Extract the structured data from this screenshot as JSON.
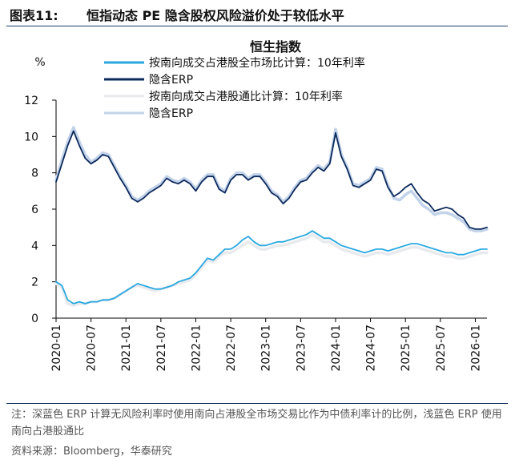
{
  "figure": {
    "number": "图表11:",
    "title": "恒指动态 PE 隐含股权风险溢价处于较低水平"
  },
  "footer": {
    "note": "注：深蓝色 ERP 计算无风险利率时使用南向占港股全市场交易比作为中债利率计的比例，浅蓝色 ERP 使用南向占港股通比",
    "source": "资料来源：Bloomberg，华泰研究"
  },
  "chart_data": {
    "type": "line",
    "title": "恒生指数",
    "ylabel": "%",
    "ylim": [
      0,
      12
    ],
    "yticks": [
      "0",
      "2",
      "4",
      "6",
      "8",
      "10",
      "12"
    ],
    "x_ticks": [
      "2020-01",
      "2020-07",
      "2021-01",
      "2021-07",
      "2022-01",
      "2022-07",
      "2023-01",
      "2023-07",
      "2024-01",
      "2024-07",
      "2025-01",
      "2025-07",
      "2026-01"
    ],
    "x_range": [
      "2020-01",
      "2026-03"
    ],
    "series": [
      {
        "name": "按南向成交占港股全市场比计算：10年利率",
        "color": "#29a8e0",
        "x": [
          "2020-01",
          "2020-02",
          "2020-03",
          "2020-04",
          "2020-05",
          "2020-06",
          "2020-07",
          "2020-08",
          "2020-09",
          "2020-10",
          "2020-11",
          "2020-12",
          "2021-01",
          "2021-02",
          "2021-03",
          "2021-04",
          "2021-05",
          "2021-06",
          "2021-07",
          "2021-08",
          "2021-09",
          "2021-10",
          "2021-11",
          "2021-12",
          "2022-01",
          "2022-02",
          "2022-03",
          "2022-04",
          "2022-05",
          "2022-06",
          "2022-07",
          "2022-08",
          "2022-09",
          "2022-10",
          "2022-11",
          "2022-12",
          "2023-01",
          "2023-02",
          "2023-03",
          "2023-04",
          "2023-05",
          "2023-06",
          "2023-07",
          "2023-08",
          "2023-09",
          "2023-10",
          "2023-11",
          "2023-12",
          "2024-01",
          "2024-02",
          "2024-03",
          "2024-04",
          "2024-05",
          "2024-06",
          "2024-07",
          "2024-08",
          "2024-09",
          "2024-10",
          "2024-11",
          "2024-12",
          "2025-01",
          "2025-02",
          "2025-03",
          "2025-04",
          "2025-05",
          "2025-06",
          "2025-07",
          "2025-08",
          "2025-09",
          "2025-10",
          "2025-11",
          "2025-12",
          "2026-01",
          "2026-02",
          "2026-03"
        ],
        "values": [
          2.0,
          1.8,
          1.0,
          0.8,
          0.9,
          0.8,
          0.9,
          0.9,
          1.0,
          1.0,
          1.1,
          1.3,
          1.5,
          1.7,
          1.9,
          1.8,
          1.7,
          1.6,
          1.6,
          1.7,
          1.8,
          2.0,
          2.1,
          2.2,
          2.5,
          2.9,
          3.3,
          3.2,
          3.5,
          3.8,
          3.8,
          4.0,
          4.3,
          4.5,
          4.2,
          4.0,
          4.0,
          4.1,
          4.2,
          4.2,
          4.3,
          4.4,
          4.5,
          4.6,
          4.8,
          4.6,
          4.4,
          4.4,
          4.2,
          4.0,
          3.9,
          3.8,
          3.7,
          3.6,
          3.7,
          3.8,
          3.8,
          3.7,
          3.8,
          3.9,
          4.0,
          4.1,
          4.1,
          4.0,
          3.9,
          3.8,
          3.7,
          3.6,
          3.6,
          3.5,
          3.5,
          3.6,
          3.7,
          3.8,
          3.8
        ]
      },
      {
        "name": "隐含ERP",
        "color": "#0d2a5c",
        "x": [
          "2020-01",
          "2020-02",
          "2020-03",
          "2020-04",
          "2020-05",
          "2020-06",
          "2020-07",
          "2020-08",
          "2020-09",
          "2020-10",
          "2020-11",
          "2020-12",
          "2021-01",
          "2021-02",
          "2021-03",
          "2021-04",
          "2021-05",
          "2021-06",
          "2021-07",
          "2021-08",
          "2021-09",
          "2021-10",
          "2021-11",
          "2021-12",
          "2022-01",
          "2022-02",
          "2022-03",
          "2022-04",
          "2022-05",
          "2022-06",
          "2022-07",
          "2022-08",
          "2022-09",
          "2022-10",
          "2022-11",
          "2022-12",
          "2023-01",
          "2023-02",
          "2023-03",
          "2023-04",
          "2023-05",
          "2023-06",
          "2023-07",
          "2023-08",
          "2023-09",
          "2023-10",
          "2023-11",
          "2023-12",
          "2024-01",
          "2024-02",
          "2024-03",
          "2024-04",
          "2024-05",
          "2024-06",
          "2024-07",
          "2024-08",
          "2024-09",
          "2024-10",
          "2024-11",
          "2024-12",
          "2025-01",
          "2025-02",
          "2025-03",
          "2025-04",
          "2025-05",
          "2025-06",
          "2025-07",
          "2025-08",
          "2025-09",
          "2025-10",
          "2025-11",
          "2025-12",
          "2026-01",
          "2026-02",
          "2026-03"
        ],
        "values": [
          7.5,
          8.5,
          9.5,
          10.3,
          9.5,
          8.8,
          8.5,
          8.7,
          9.0,
          8.9,
          8.3,
          7.7,
          7.2,
          6.6,
          6.4,
          6.6,
          6.9,
          7.1,
          7.3,
          7.7,
          7.5,
          7.4,
          7.6,
          7.4,
          7.0,
          7.5,
          7.8,
          7.8,
          7.1,
          6.9,
          7.6,
          7.9,
          7.9,
          7.6,
          7.8,
          7.8,
          7.4,
          6.9,
          6.7,
          6.3,
          6.6,
          7.1,
          7.5,
          7.6,
          8.0,
          8.3,
          8.1,
          8.5,
          10.2,
          8.9,
          8.2,
          7.3,
          7.2,
          7.4,
          7.6,
          8.2,
          8.1,
          7.2,
          6.7,
          6.9,
          7.2,
          7.4,
          6.9,
          6.5,
          6.3,
          5.9,
          6.0,
          6.1,
          6.0,
          5.7,
          5.5,
          5.0,
          4.9,
          4.9,
          5.0
        ]
      },
      {
        "name": "按南向成交占港股通比计算：10年利率",
        "color": "#e8eaee",
        "x": [
          "2020-01",
          "2020-02",
          "2020-03",
          "2020-04",
          "2020-05",
          "2020-06",
          "2020-07",
          "2020-08",
          "2020-09",
          "2020-10",
          "2020-11",
          "2020-12",
          "2021-01",
          "2021-02",
          "2021-03",
          "2021-04",
          "2021-05",
          "2021-06",
          "2021-07",
          "2021-08",
          "2021-09",
          "2021-10",
          "2021-11",
          "2021-12",
          "2022-01",
          "2022-02",
          "2022-03",
          "2022-04",
          "2022-05",
          "2022-06",
          "2022-07",
          "2022-08",
          "2022-09",
          "2022-10",
          "2022-11",
          "2022-12",
          "2023-01",
          "2023-02",
          "2023-03",
          "2023-04",
          "2023-05",
          "2023-06",
          "2023-07",
          "2023-08",
          "2023-09",
          "2023-10",
          "2023-11",
          "2023-12",
          "2024-01",
          "2024-02",
          "2024-03",
          "2024-04",
          "2024-05",
          "2024-06",
          "2024-07",
          "2024-08",
          "2024-09",
          "2024-10",
          "2024-11",
          "2024-12",
          "2025-01",
          "2025-02",
          "2025-03",
          "2025-04",
          "2025-05",
          "2025-06",
          "2025-07",
          "2025-08",
          "2025-09",
          "2025-10",
          "2025-11",
          "2025-12",
          "2026-01",
          "2026-02",
          "2026-03"
        ],
        "values": [
          1.9,
          1.7,
          0.8,
          0.7,
          0.8,
          0.8,
          0.9,
          0.9,
          1.0,
          1.0,
          1.1,
          1.3,
          1.5,
          1.7,
          1.8,
          1.7,
          1.6,
          1.5,
          1.6,
          1.7,
          1.8,
          1.9,
          2.0,
          2.1,
          2.4,
          2.8,
          3.2,
          3.1,
          3.4,
          3.6,
          3.6,
          3.8,
          4.0,
          4.2,
          4.0,
          3.8,
          3.8,
          3.9,
          4.0,
          4.0,
          4.1,
          4.2,
          4.3,
          4.4,
          4.6,
          4.4,
          4.2,
          4.2,
          4.0,
          3.8,
          3.7,
          3.6,
          3.5,
          3.4,
          3.5,
          3.6,
          3.6,
          3.5,
          3.6,
          3.7,
          3.8,
          3.9,
          3.9,
          3.8,
          3.7,
          3.6,
          3.5,
          3.4,
          3.4,
          3.3,
          3.3,
          3.4,
          3.5,
          3.6,
          3.6
        ]
      },
      {
        "name": "隐含ERP",
        "color": "#c2d3ea",
        "x": [
          "2020-01",
          "2020-02",
          "2020-03",
          "2020-04",
          "2020-05",
          "2020-06",
          "2020-07",
          "2020-08",
          "2020-09",
          "2020-10",
          "2020-11",
          "2020-12",
          "2021-01",
          "2021-02",
          "2021-03",
          "2021-04",
          "2021-05",
          "2021-06",
          "2021-07",
          "2021-08",
          "2021-09",
          "2021-10",
          "2021-11",
          "2021-12",
          "2022-01",
          "2022-02",
          "2022-03",
          "2022-04",
          "2022-05",
          "2022-06",
          "2022-07",
          "2022-08",
          "2022-09",
          "2022-10",
          "2022-11",
          "2022-12",
          "2023-01",
          "2023-02",
          "2023-03",
          "2023-04",
          "2023-05",
          "2023-06",
          "2023-07",
          "2023-08",
          "2023-09",
          "2023-10",
          "2023-11",
          "2023-12",
          "2024-01",
          "2024-02",
          "2024-03",
          "2024-04",
          "2024-05",
          "2024-06",
          "2024-07",
          "2024-08",
          "2024-09",
          "2024-10",
          "2024-11",
          "2024-12",
          "2025-01",
          "2025-02",
          "2025-03",
          "2025-04",
          "2025-05",
          "2025-06",
          "2025-07",
          "2025-08",
          "2025-09",
          "2025-10",
          "2025-11",
          "2025-12",
          "2026-01",
          "2026-02",
          "2026-03"
        ],
        "values": [
          7.6,
          8.7,
          9.7,
          10.5,
          9.7,
          9.0,
          8.6,
          8.8,
          9.1,
          9.0,
          8.4,
          7.8,
          7.3,
          6.7,
          6.5,
          6.7,
          7.0,
          7.2,
          7.4,
          7.8,
          7.6,
          7.5,
          7.7,
          7.5,
          7.1,
          7.6,
          7.9,
          7.9,
          7.2,
          7.0,
          7.7,
          8.0,
          8.0,
          7.7,
          7.9,
          7.9,
          7.5,
          7.0,
          6.8,
          6.4,
          6.7,
          7.2,
          7.6,
          7.7,
          8.1,
          8.4,
          8.2,
          8.6,
          10.4,
          9.0,
          8.3,
          7.4,
          7.3,
          7.5,
          7.7,
          8.3,
          8.2,
          7.3,
          6.6,
          6.5,
          6.8,
          7.0,
          6.6,
          6.2,
          6.0,
          5.7,
          5.8,
          5.8,
          5.7,
          5.5,
          5.3,
          4.9,
          4.8,
          4.8,
          4.9
        ]
      }
    ]
  }
}
